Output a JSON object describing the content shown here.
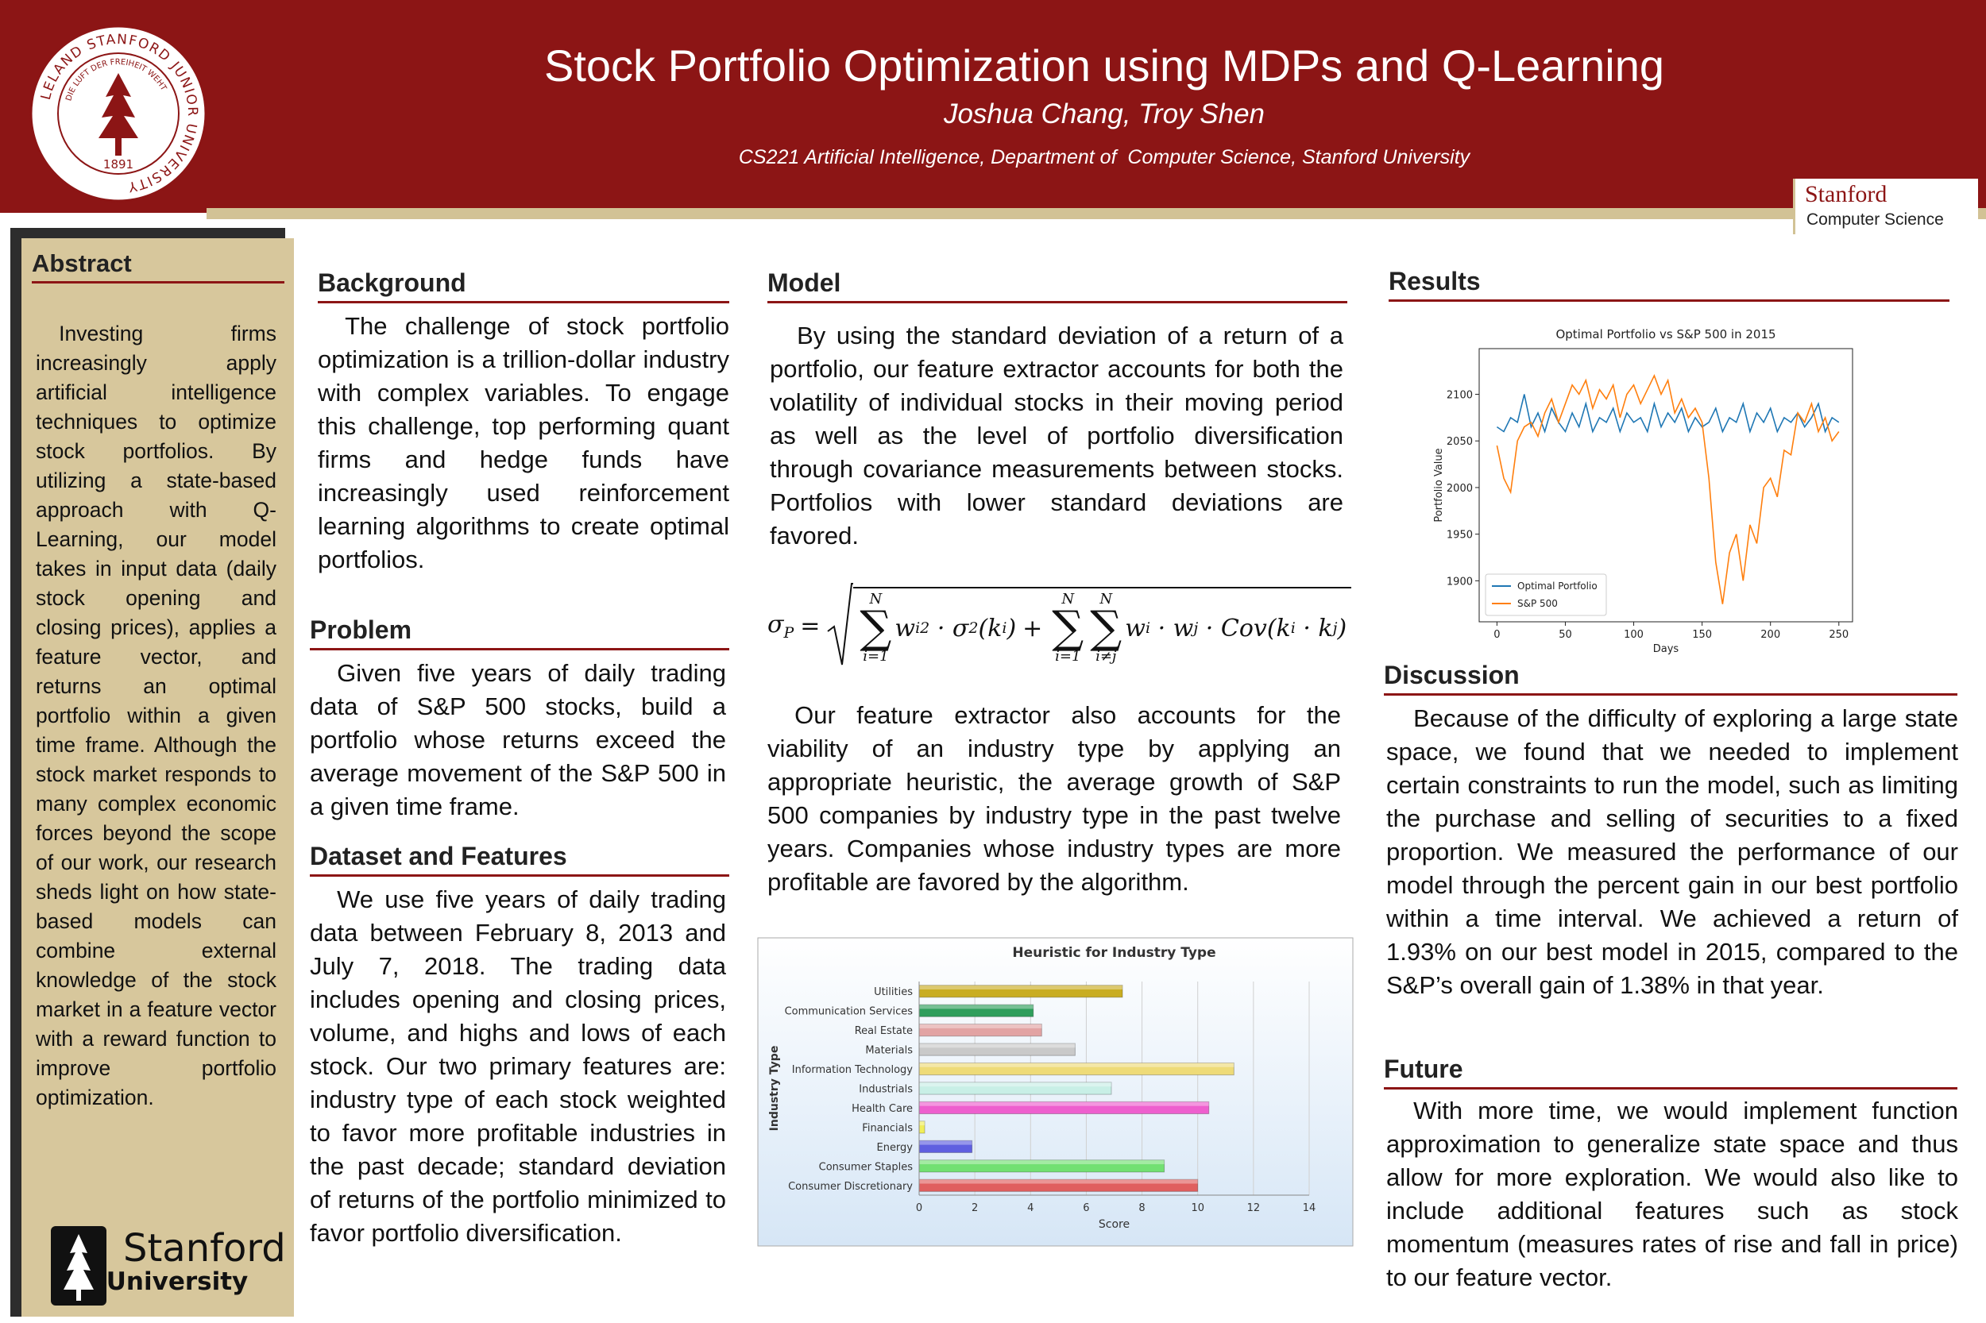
{
  "header": {
    "title": "Stock Portfolio Optimization using MDPs and Q-Learning",
    "authors": "Joshua Chang, Troy Shen",
    "affiliation": "CS221 Artificial Intelligence, Department of  Computer Science, Stanford University"
  },
  "seal": {
    "ring": "LELAND STANFORD JUNIOR UNIVERSITY",
    "motto": "DIE LUFT DER FREIHEIT WEHT",
    "year": "1891"
  },
  "badge": {
    "name": "Stanford",
    "dept": "Computer Science"
  },
  "abstract": {
    "heading": "Abstract",
    "body": "Investing firms increasingly apply artificial intelligence techniques to optimize stock portfolios. By utilizing a state-based approach with Q-Learning, our model takes in input data (daily stock opening and closing prices), applies a feature vector, and returns an optimal portfolio within a given time frame. Although the stock market responds to many complex economic forces beyond the scope of our work, our research sheds light on how state-based models can combine external knowledge of the stock market in a feature vector with a reward function to improve portfolio optimization."
  },
  "university_logo": {
    "name": "Stanford",
    "sub": "University"
  },
  "background": {
    "heading": "Background",
    "body": "The challenge of stock portfolio optimization is a trillion-dollar industry with complex variables. To engage this challenge, top performing quant firms and hedge funds have increasingly used reinforcement learning algorithms to create optimal portfolios."
  },
  "problem": {
    "heading": "Problem",
    "body": "Given five years of daily trading data of S&P 500 stocks, build a portfolio whose returns exceed the average movement of the S&P 500 in a given time frame."
  },
  "dataset": {
    "heading": "Dataset and Features",
    "body": "We use five years of daily trading data between  February 8, 2013 and July 7, 2018. The trading data includes opening and closing prices, volume, and highs and lows of each stock. Our two primary features are: industry type of each stock weighted to favor more profitable industries in the past decade; standard deviation of returns of the portfolio minimized to favor portfolio diversification."
  },
  "model": {
    "heading": "Model",
    "body": "By using the standard deviation of a return of a portfolio, our feature extractor accounts for both the volatility of individual stocks in their moving period as well as the level of portfolio diversification through covariance measurements between stocks. Portfolios with lower standard deviations are favored.",
    "body2": "Our feature extractor also accounts for the viability of an industry type by applying an appropriate heuristic, the average growth of S&P 500 companies by industry type in the past twelve years.  Companies whose industry types are more profitable are favored by the algorithm."
  },
  "formula": {
    "lhs": "σ",
    "lhs_sub": "P",
    "equals": "=",
    "sum_symbol": "∑",
    "plus": "+",
    "sums": [
      {
        "top": "N",
        "bottom": "i=1"
      },
      {
        "top": "N",
        "bottom": "i=1"
      },
      {
        "top": "N",
        "bottom": "i≠j"
      }
    ],
    "term1": [
      "w",
      "i",
      "2",
      "· σ",
      "2",
      "(k",
      "i",
      ")"
    ],
    "term2": [
      "w",
      "i",
      "· w",
      "j",
      "· Cov(k",
      "i",
      "· k",
      "j",
      ")"
    ]
  },
  "results": {
    "heading": "Results"
  },
  "discussion": {
    "heading": "Discussion",
    "body": "Because of the difficulty of exploring a large state space, we found that we needed to implement certain constraints to run the model, such as limiting the purchase and selling of securities to a fixed proportion. We measured the performance of our model through the percent gain in our best portfolio within a time interval. We achieved a return of 1.93% on our best model in 2015, compared to the S&P’s overall gain of 1.38% in that year."
  },
  "future": {
    "heading": "Future",
    "body": "With more time, we would implement function approximation to generalize state space and thus allow for more exploration. We would also like to include additional features such as stock momentum (measures rates of rise and fall in price) to our feature vector."
  },
  "chart_data": [
    {
      "type": "line",
      "title": "Optimal Portfolio vs S&P 500 in 2015",
      "x_label": "Days",
      "y_label": "Portfolio Value",
      "x": [
        0,
        5,
        10,
        15,
        20,
        25,
        30,
        35,
        40,
        45,
        50,
        55,
        60,
        65,
        70,
        75,
        80,
        85,
        90,
        95,
        100,
        105,
        110,
        115,
        120,
        125,
        130,
        135,
        140,
        145,
        150,
        155,
        160,
        165,
        170,
        175,
        180,
        185,
        190,
        195,
        200,
        205,
        210,
        215,
        220,
        225,
        230,
        235,
        240,
        245,
        250
      ],
      "series": [
        {
          "name": "Optimal Portfolio",
          "color": "#1f77b4",
          "values": [
            2065,
            2060,
            2075,
            2070,
            2100,
            2065,
            2080,
            2060,
            2085,
            2070,
            2060,
            2080,
            2065,
            2090,
            2060,
            2075,
            2070,
            2085,
            2060,
            2080,
            2070,
            2075,
            2060,
            2090,
            2065,
            2080,
            2070,
            2085,
            2060,
            2075,
            2065,
            2070,
            2085,
            2060,
            2075,
            2070,
            2090,
            2060,
            2080,
            2070,
            2085,
            2060,
            2075,
            2070,
            2080,
            2065,
            2075,
            2090,
            2060,
            2075,
            2070
          ]
        },
        {
          "name": "S&P 500",
          "color": "#ff7f0e",
          "values": [
            2045,
            2010,
            1995,
            2050,
            2065,
            2070,
            2055,
            2080,
            2095,
            2070,
            2090,
            2110,
            2100,
            2115,
            2085,
            2105,
            2095,
            2110,
            2075,
            2100,
            2110,
            2090,
            2105,
            2120,
            2100,
            2115,
            2080,
            2095,
            2075,
            2085,
            2070,
            2010,
            1920,
            1875,
            1930,
            1950,
            1900,
            1960,
            1940,
            2000,
            2010,
            1990,
            2040,
            2035,
            2080,
            2070,
            2090,
            2060,
            2075,
            2050,
            2060
          ]
        }
      ],
      "xlim": [
        -13,
        260
      ],
      "ylim": [
        1856,
        2149
      ],
      "xticks": [
        0,
        50,
        100,
        150,
        200,
        250
      ],
      "yticks": [
        1900,
        1950,
        2000,
        2050,
        2100
      ],
      "legend": "lower left"
    },
    {
      "type": "hbar",
      "title": "Heuristic for Industry Type",
      "x_label": "Score",
      "y_label": "Industry Type",
      "categories": [
        "Utilities",
        "Communication Services",
        "Real Estate",
        "Materials",
        "Information Technology",
        "Industrials",
        "Health Care",
        "Financials",
        "Energy",
        "Consumer Staples",
        "Consumer Discretionary"
      ],
      "values": [
        7.3,
        4.1,
        4.4,
        5.6,
        11.3,
        6.9,
        10.4,
        0.2,
        1.9,
        8.8,
        10.0
      ],
      "colors": [
        "#c9ad22",
        "#2f9e5c",
        "#e2a3a3",
        "#c9c9c9",
        "#eedb78",
        "#c8efe6",
        "#ee5fce",
        "#f0ee5a",
        "#5f5fe0",
        "#72e072",
        "#e05f5f"
      ],
      "xlim": [
        0,
        14
      ],
      "xticks": [
        0,
        2,
        4,
        6,
        8,
        10,
        12,
        14
      ],
      "grid": true
    }
  ]
}
